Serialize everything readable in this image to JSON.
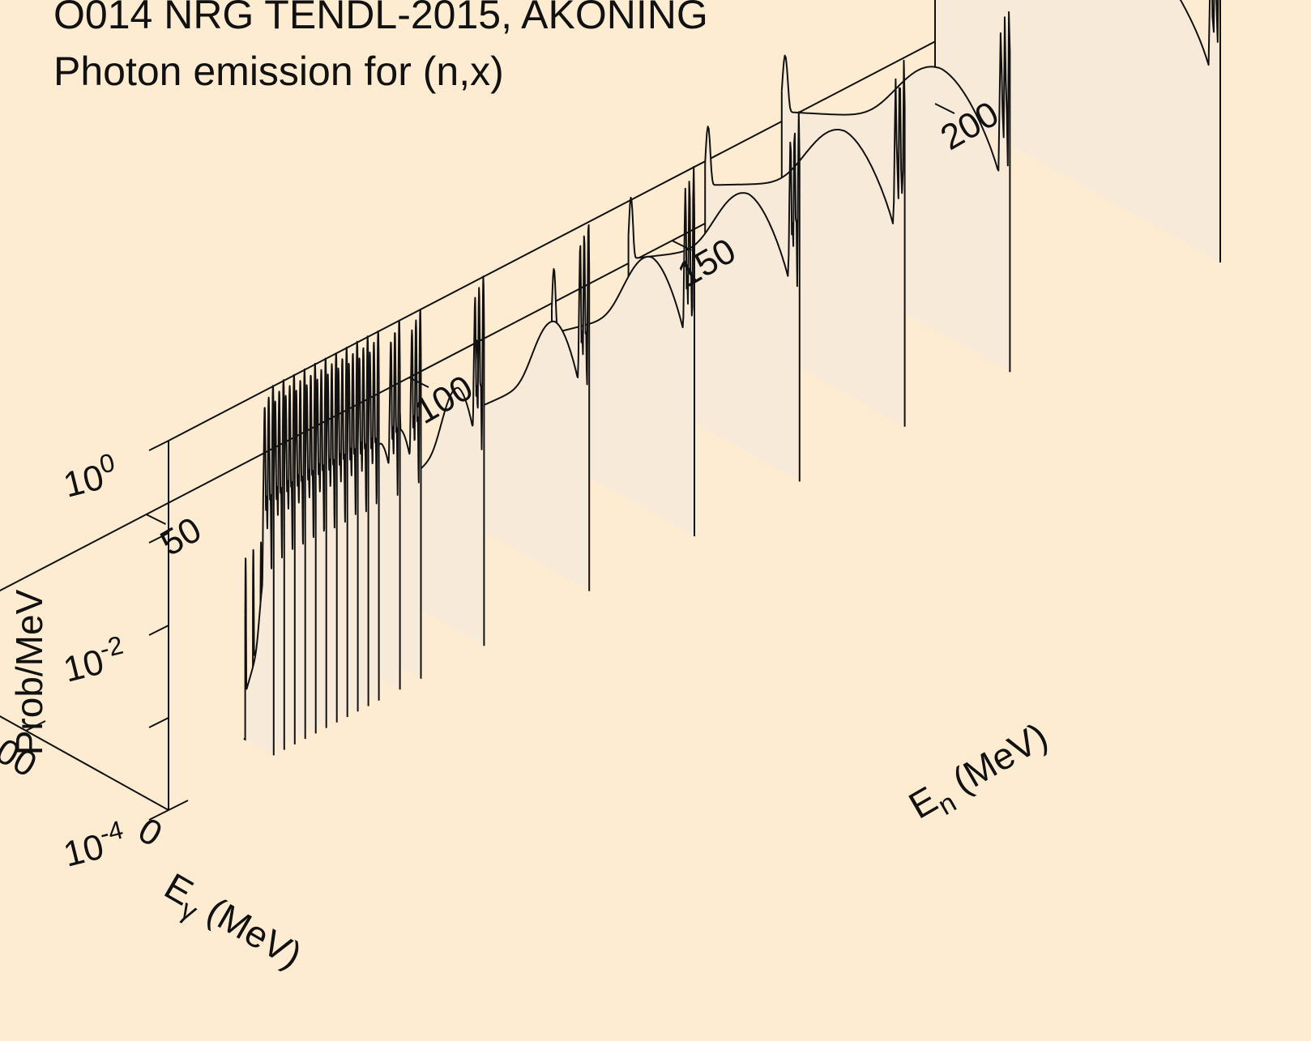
{
  "title_lines": [
    "O014 NRG TENDL-2015, AKONING",
    "Photon emission for (n,x)"
  ],
  "colors": {
    "background": "#feecd2",
    "axis": "#111111",
    "curve": "#111111",
    "slice_fill": "#f8ead8"
  },
  "chart_data": {
    "type": "3d-waterfall-line",
    "title": "O014 NRG TENDL-2015, AKONING",
    "subtitle": "Photon emission for (n,x)",
    "z_axis": {
      "label": "Prob/MeV",
      "scale": "log",
      "range": [
        0.0001,
        1
      ],
      "tick_values": [
        0.0001,
        0.01,
        1
      ],
      "tick_labels": [
        {
          "base": "10",
          "exp": "-4"
        },
        {
          "base": "10",
          "exp": "-2"
        },
        {
          "base": "10",
          "exp": "0"
        }
      ]
    },
    "x_axis": {
      "label": "E",
      "label_sub": "γ",
      "label_unit": " (MeV)",
      "range": [
        0,
        200
      ],
      "tick_values": [
        0,
        100,
        200
      ],
      "tick_labels": [
        "0",
        "100",
        "200"
      ]
    },
    "y_axis": {
      "label": "E",
      "label_sub": "n",
      "label_unit": " (MeV)",
      "range": [
        0,
        200
      ],
      "tick_values": [
        0,
        50,
        100,
        150,
        200
      ],
      "tick_labels": [
        "0",
        "50",
        "100",
        "150",
        "200"
      ]
    },
    "incident_energies": [
      20,
      22,
      24,
      26,
      28,
      30,
      32,
      34,
      36,
      38,
      40,
      44,
      48,
      60,
      80,
      100,
      120,
      140,
      160,
      200
    ],
    "spectrum_model": {
      "low_lines": [
        {
          "e": 0.5,
          "p": 1.0
        },
        {
          "e": 2.3,
          "p": 0.06
        },
        {
          "e": 3.5,
          "p": 0.7
        },
        {
          "e": 5.0,
          "p": 0.05
        },
        {
          "e": 6.3,
          "p": 0.5
        },
        {
          "e": 7.0,
          "p": 0.08
        }
      ],
      "continuum_peak_fraction_of_En": 0.3,
      "continuum_peak_level_low_En": 0.006,
      "continuum_peak_level_high_En": 0.06,
      "endpoint_level": 0.009
    }
  }
}
